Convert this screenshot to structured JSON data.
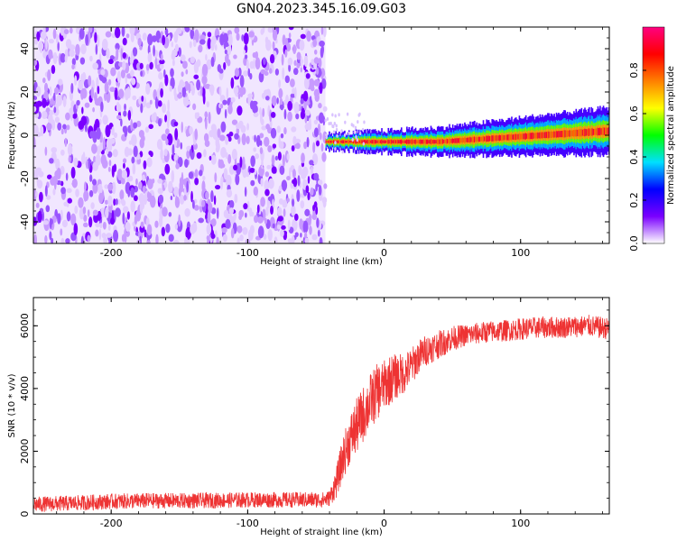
{
  "figure": {
    "title": "GN04.2023.345.16.09.G03"
  },
  "chart_data": [
    {
      "type": "heatmap",
      "title": "GN04.2023.345.16.09.G03",
      "xlabel": "Height of straight line (km)",
      "ylabel": "Frequency (Hz)",
      "xlim": [
        -257,
        165
      ],
      "ylim": [
        -50,
        50
      ],
      "xticks": [
        -200,
        -100,
        0,
        100
      ],
      "yticks": [
        -40,
        -20,
        0,
        20,
        40
      ],
      "grid": false,
      "colorbar": {
        "label": "Normalized spectral amplitude",
        "range": [
          0,
          1
        ],
        "ticks": [
          0.0,
          0.2,
          0.4,
          0.6,
          0.8
        ],
        "colormap": [
          "#ffffff",
          "#7a00ff",
          "#0000ff",
          "#00e0ff",
          "#00ff00",
          "#ffff00",
          "#ff8000",
          "#ff0000",
          "#ff0080"
        ]
      },
      "regions": [
        {
          "x_range": [
            -257,
            -43
          ],
          "frequency_range": [
            -50,
            50
          ],
          "amplitude": [
            0.05,
            0.15
          ],
          "pattern": "noise"
        },
        {
          "x_range": [
            -43,
            165
          ],
          "frequency_center": [
            -3,
            2
          ],
          "amplitude_peak": 1.0,
          "pattern": "narrow carrier line"
        }
      ]
    },
    {
      "type": "line",
      "xlabel": "Height of straight line (km)",
      "ylabel": "SNR (10 * v/v)",
      "xlim": [
        -257,
        165
      ],
      "ylim": [
        0,
        6900
      ],
      "xticks": [
        -200,
        -100,
        0,
        100
      ],
      "yticks": [
        0,
        2000,
        4000,
        6000
      ],
      "grid": false,
      "series": [
        {
          "color": "#ee3333",
          "x": [
            -257,
            -225,
            -200,
            -175,
            -150,
            -125,
            -100,
            -75,
            -60,
            -45,
            -40,
            -35,
            -30,
            -25,
            -20,
            -15,
            -10,
            -5,
            0,
            5,
            10,
            15,
            20,
            25,
            30,
            40,
            50,
            60,
            75,
            90,
            100,
            115,
            130,
            150,
            165
          ],
          "y": [
            300,
            350,
            400,
            420,
            420,
            430,
            450,
            450,
            450,
            450,
            500,
            1000,
            1800,
            2400,
            2800,
            3200,
            3600,
            3900,
            4100,
            4300,
            4400,
            4500,
            4700,
            5000,
            5200,
            5400,
            5600,
            5700,
            5800,
            5850,
            5900,
            5950,
            5950,
            6000,
            5900
          ],
          "noise_amplitude": [
            250,
            250,
            250,
            250,
            250,
            250,
            250,
            250,
            250,
            250,
            250,
            500,
            700,
            800,
            900,
            900,
            900,
            900,
            800,
            800,
            700,
            650,
            600,
            550,
            500,
            450,
            400,
            350,
            350,
            350,
            350,
            350,
            350,
            350,
            350
          ]
        }
      ]
    }
  ]
}
